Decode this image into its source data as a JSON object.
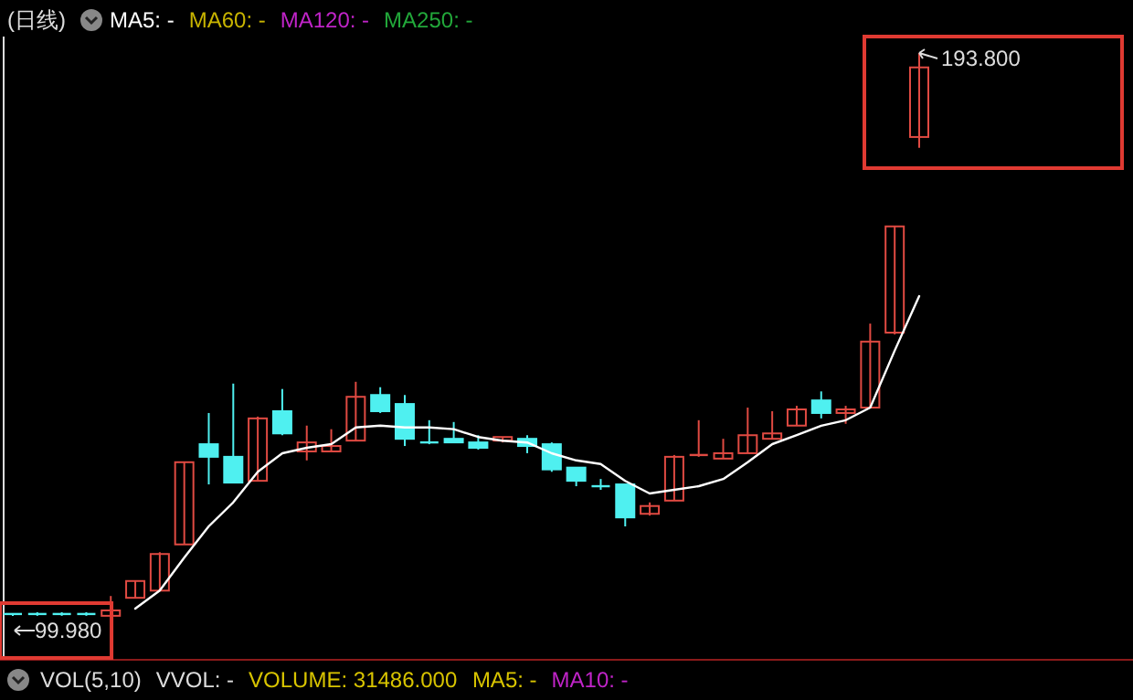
{
  "chart_data": {
    "type": "candlestick",
    "title": "(日线)",
    "categories": [
      null,
      null,
      null,
      null,
      null,
      null,
      null,
      null,
      null,
      null,
      null,
      null,
      null,
      null,
      null,
      null,
      null,
      null,
      null,
      null,
      null,
      null,
      null,
      null,
      null,
      null,
      null,
      null,
      null,
      null,
      null,
      null,
      null,
      null,
      null,
      null,
      null,
      null
    ],
    "ohlc": [
      [
        100.3,
        100.3,
        99.98,
        100.3
      ],
      [
        100.3,
        100.6,
        100.0,
        100.3
      ],
      [
        100.3,
        100.6,
        100.0,
        100.3
      ],
      [
        100.3,
        100.6,
        100.0,
        100.3
      ],
      [
        100.0,
        103.3,
        100.0,
        100.9
      ],
      [
        103.0,
        105.8,
        103.0,
        105.8
      ],
      [
        104.2,
        110.6,
        104.2,
        110.3
      ],
      [
        111.9,
        125.6,
        111.9,
        125.6
      ],
      [
        128.6,
        133.8,
        121.9,
        126.5
      ],
      [
        126.5,
        138.7,
        122.2,
        122.2
      ],
      [
        122.5,
        133.2,
        122.5,
        132.9
      ],
      [
        134.1,
        137.8,
        130.1,
        130.4
      ],
      [
        127.4,
        131.7,
        125.9,
        128.9
      ],
      [
        127.4,
        131.1,
        127.4,
        128.3
      ],
      [
        129.2,
        139.0,
        129.2,
        136.5
      ],
      [
        136.8,
        138.1,
        133.8,
        134.1
      ],
      [
        135.3,
        136.8,
        128.3,
        129.5
      ],
      [
        128.9,
        132.6,
        128.6,
        128.9
      ],
      [
        129.5,
        132.3,
        128.9,
        128.9
      ],
      [
        128.9,
        130.1,
        127.7,
        128.0
      ],
      [
        129.2,
        129.8,
        128.9,
        129.8
      ],
      [
        129.5,
        130.1,
        127.1,
        128.3
      ],
      [
        128.6,
        128.9,
        124.0,
        124.4
      ],
      [
        124.7,
        124.7,
        121.6,
        122.5
      ],
      [
        121.6,
        122.8,
        121.0,
        121.6
      ],
      [
        121.9,
        121.9,
        114.9,
        116.4
      ],
      [
        117.0,
        118.9,
        116.7,
        118.3
      ],
      [
        119.2,
        126.8,
        119.2,
        126.5
      ],
      [
        126.5,
        132.6,
        126.5,
        126.8
      ],
      [
        126.2,
        129.5,
        126.2,
        127.1
      ],
      [
        127.1,
        134.7,
        127.1,
        130.1
      ],
      [
        129.5,
        134.1,
        129.5,
        130.4
      ],
      [
        131.7,
        135.0,
        131.7,
        134.4
      ],
      [
        135.9,
        137.4,
        132.9,
        133.8
      ],
      [
        133.8,
        135.0,
        132.0,
        134.4
      ],
      [
        134.7,
        148.7,
        134.7,
        145.7
      ],
      [
        147.2,
        164.9,
        146.9,
        164.9
      ],
      [
        179.8,
        193.8,
        178.0,
        191.4
      ]
    ],
    "colors": [
      "#4ff0f0",
      "#4ff0f0",
      "#4ff0f0",
      "#4ff0f0",
      "#e04a42",
      "#e04a42",
      "#e04a42",
      "#e04a42",
      "#4ff0f0",
      "#4ff0f0",
      "#e04a42",
      "#4ff0f0",
      "#e04a42",
      "#e04a42",
      "#e04a42",
      "#4ff0f0",
      "#4ff0f0",
      "#4ff0f0",
      "#4ff0f0",
      "#4ff0f0",
      "#e04a42",
      "#4ff0f0",
      "#4ff0f0",
      "#4ff0f0",
      "#4ff0f0",
      "#4ff0f0",
      "#e04a42",
      "#e04a42",
      "#e04a42",
      "#e04a42",
      "#e04a42",
      "#e04a42",
      "#e04a42",
      "#4ff0f0",
      "#e04a42",
      "#e04a42",
      "#e04a42",
      "#e04a42"
    ],
    "series": [
      {
        "name": "MA5: -",
        "type": "line",
        "color": "#ffffff",
        "values": [
          null,
          null,
          null,
          null,
          null,
          101.2,
          104.2,
          109.7,
          114.9,
          118.9,
          124.0,
          127.1,
          128.0,
          128.6,
          131.4,
          131.7,
          131.4,
          131.4,
          131.1,
          129.8,
          129.2,
          128.9,
          127.1,
          125.9,
          125.3,
          122.5,
          120.4,
          121.0,
          121.6,
          122.8,
          125.6,
          128.6,
          130.1,
          131.7,
          132.6,
          134.7,
          144.2,
          153.3
        ]
      },
      {
        "name": "MA60: -",
        "type": "line",
        "color": "#c8b400",
        "values": [
          null,
          null,
          null,
          null,
          null,
          null,
          null,
          null,
          null,
          null,
          null,
          null,
          null,
          null,
          null,
          null,
          null,
          null,
          null,
          null,
          null,
          null,
          null,
          null,
          null,
          null,
          null,
          null,
          null,
          null,
          null,
          null,
          null,
          null,
          null,
          null,
          null,
          null
        ]
      },
      {
        "name": "MA120: -",
        "type": "line",
        "color": "#c024c8",
        "values": [
          null,
          null,
          null,
          null,
          null,
          null,
          null,
          null,
          null,
          null,
          null,
          null,
          null,
          null,
          null,
          null,
          null,
          null,
          null,
          null,
          null,
          null,
          null,
          null,
          null,
          null,
          null,
          null,
          null,
          null,
          null,
          null,
          null,
          null,
          null,
          null,
          null,
          null
        ]
      },
      {
        "name": "MA250: -",
        "type": "line",
        "color": "#22a83a",
        "values": [
          null,
          null,
          null,
          null,
          null,
          null,
          null,
          null,
          null,
          null,
          null,
          null,
          null,
          null,
          null,
          null,
          null,
          null,
          null,
          null,
          null,
          null,
          null,
          null,
          null,
          null,
          null,
          null,
          null,
          null,
          null,
          null,
          null,
          null,
          null,
          null,
          null,
          null
        ]
      }
    ],
    "legend": "top left",
    "annotations": [
      "193.800",
      "99.980",
      "VOL(5,10)",
      "VVOL: -",
      "VOLUME: 31486.000",
      "MA5: -",
      "MA10: -"
    ]
  }
}
